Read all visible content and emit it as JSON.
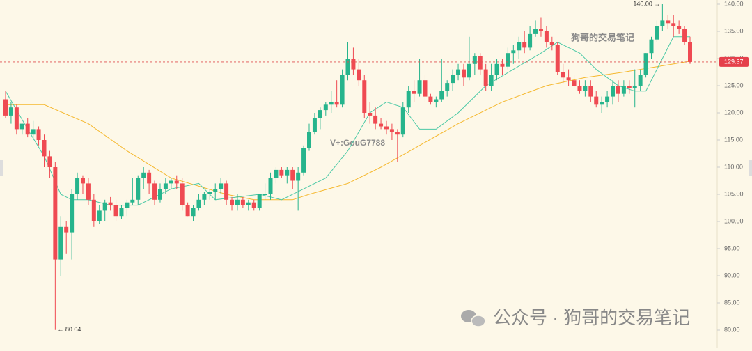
{
  "chart_data": {
    "type": "candlestick",
    "up_color": "#26b48c",
    "down_color": "#ef4a52",
    "ylim": [
      80,
      140
    ],
    "yticks": [
      {
        "value": 80,
        "label": "80.00"
      },
      {
        "value": 85,
        "label": "85.00"
      },
      {
        "value": 90,
        "label": "90.00"
      },
      {
        "value": 95,
        "label": "95.00"
      },
      {
        "value": 100,
        "label": "100.00"
      },
      {
        "value": 105,
        "label": "105.00"
      },
      {
        "value": 110,
        "label": "110.00"
      },
      {
        "value": 115,
        "label": "115.00"
      },
      {
        "value": 120,
        "label": "120.00"
      },
      {
        "value": 125,
        "label": "125.00"
      },
      {
        "value": 130,
        "label": "130.00"
      },
      {
        "value": 135,
        "label": "135.00"
      },
      {
        "value": 140,
        "label": "140.00"
      }
    ],
    "ohlc": [
      [
        122.5,
        124,
        119,
        119.5
      ],
      [
        119.5,
        122,
        118,
        121
      ],
      [
        121,
        121.5,
        116,
        117
      ],
      [
        117,
        118,
        116,
        118
      ],
      [
        118,
        119,
        115.5,
        116
      ],
      [
        116,
        118.5,
        115,
        117
      ],
      [
        117,
        117.5,
        114,
        115
      ],
      [
        115,
        116,
        110,
        112
      ],
      [
        112,
        113,
        108,
        110
      ],
      [
        110,
        111,
        80.04,
        93
      ],
      [
        93,
        101,
        90,
        99
      ],
      [
        99,
        100,
        94,
        98
      ],
      [
        98,
        106,
        93,
        105
      ],
      [
        105,
        109,
        104,
        108
      ],
      [
        108,
        108.5,
        105,
        107
      ],
      [
        107,
        108,
        103,
        104
      ],
      [
        104,
        105,
        99,
        100
      ],
      [
        100,
        103,
        99.5,
        102
      ],
      [
        102,
        104,
        100,
        103.5
      ],
      [
        103.5,
        104.5,
        102,
        103
      ],
      [
        103,
        104,
        100,
        101
      ],
      [
        101,
        103,
        100.5,
        102.5
      ],
      [
        102.5,
        104,
        101,
        103.5
      ],
      [
        103.5,
        108,
        103,
        104
      ],
      [
        104,
        108.5,
        103,
        108
      ],
      [
        108,
        110,
        106,
        109
      ],
      [
        109,
        109.5,
        105,
        107
      ],
      [
        107,
        107.5,
        103,
        104
      ],
      [
        104,
        107,
        103.5,
        106
      ],
      [
        106,
        108,
        105,
        107
      ],
      [
        107,
        108,
        106,
        107.5
      ],
      [
        107.5,
        108.5,
        106,
        107
      ],
      [
        107,
        108,
        102,
        103
      ],
      [
        103,
        103.5,
        101,
        101
      ],
      [
        101,
        103,
        100,
        102.5
      ],
      [
        102.5,
        105,
        102,
        104
      ],
      [
        104,
        105.5,
        103,
        105
      ],
      [
        105,
        106,
        104,
        105.5
      ],
      [
        105.5,
        107,
        104,
        106
      ],
      [
        106,
        108,
        105,
        107
      ],
      [
        107,
        107.5,
        103,
        104
      ],
      [
        104,
        104.5,
        102,
        103
      ],
      [
        103,
        105,
        102,
        104
      ],
      [
        104,
        104.5,
        102.5,
        103
      ],
      [
        103,
        104,
        102,
        103.5
      ],
      [
        103.5,
        104,
        102,
        102.5
      ],
      [
        102.5,
        105,
        102,
        105
      ],
      [
        105,
        107,
        104,
        105
      ],
      [
        105,
        109,
        104,
        108
      ],
      [
        108,
        110,
        107,
        109.5
      ],
      [
        109.5,
        110,
        108,
        108.5
      ],
      [
        108.5,
        110,
        107,
        109.5
      ],
      [
        109.5,
        110,
        106,
        107.5
      ],
      [
        107.5,
        110,
        102,
        109
      ],
      [
        109,
        114,
        108.5,
        113.5
      ],
      [
        113.5,
        118,
        113,
        116.5
      ],
      [
        116.5,
        120,
        116,
        119
      ],
      [
        119,
        121,
        117,
        120.5
      ],
      [
        120.5,
        122,
        119.5,
        121.5
      ],
      [
        121.5,
        124,
        120,
        122
      ],
      [
        122,
        126,
        121,
        121.5
      ],
      [
        121.5,
        128,
        121,
        127
      ],
      [
        127,
        133,
        126,
        130
      ],
      [
        130,
        132,
        127,
        128
      ],
      [
        128,
        130,
        125,
        126
      ],
      [
        126,
        127,
        119,
        120
      ],
      [
        120,
        122,
        118,
        119.5
      ],
      [
        119.5,
        121,
        117,
        118
      ],
      [
        118,
        119,
        117,
        117.5
      ],
      [
        117.5,
        118.5,
        116,
        117
      ],
      [
        117,
        118,
        115,
        116.5
      ],
      [
        116.5,
        117,
        111,
        116
      ],
      [
        116,
        122,
        115.5,
        121
      ],
      [
        121,
        125,
        120,
        124
      ],
      [
        124,
        126,
        122,
        123.5
      ],
      [
        123.5,
        130,
        123,
        126
      ],
      [
        126,
        127,
        122,
        123
      ],
      [
        123,
        123.5,
        121.5,
        122
      ],
      [
        122,
        123,
        121,
        122.5
      ],
      [
        122.5,
        130,
        122,
        124
      ],
      [
        124,
        126,
        123,
        125.5
      ],
      [
        125.5,
        128,
        124,
        127
      ],
      [
        127,
        129,
        126,
        128
      ],
      [
        128,
        129,
        125,
        126.5
      ],
      [
        126.5,
        134,
        126,
        129
      ],
      [
        129,
        131,
        127,
        130.5
      ],
      [
        130.5,
        131,
        127,
        128
      ],
      [
        128,
        129,
        124,
        125
      ],
      [
        125,
        129,
        124,
        127
      ],
      [
        127,
        130,
        126,
        129
      ],
      [
        129,
        130,
        127,
        128.5
      ],
      [
        128.5,
        132,
        128,
        131
      ],
      [
        131,
        132.5,
        129,
        131.5
      ],
      [
        131.5,
        134,
        130,
        133
      ],
      [
        133,
        135,
        131,
        132
      ],
      [
        132,
        136,
        131.5,
        134.5
      ],
      [
        134.5,
        137,
        134,
        135.5
      ],
      [
        135.5,
        137.5,
        134,
        135
      ],
      [
        135,
        136,
        132,
        133
      ],
      [
        133,
        134,
        131.5,
        132.5
      ],
      [
        132.5,
        133,
        127,
        127.5
      ],
      [
        127.5,
        129,
        125.5,
        126.5
      ],
      [
        126.5,
        128,
        125,
        126
      ],
      [
        126,
        127,
        124.5,
        125
      ],
      [
        125,
        126,
        123.5,
        124
      ],
      [
        124,
        126,
        123,
        125
      ],
      [
        125,
        126,
        122,
        123
      ],
      [
        123,
        124,
        121,
        121.5
      ],
      [
        121.5,
        123,
        120,
        122
      ],
      [
        122,
        124,
        121,
        123
      ],
      [
        123,
        126,
        121.5,
        125
      ],
      [
        125,
        126,
        122,
        123.5
      ],
      [
        123.5,
        126,
        123,
        125
      ],
      [
        125,
        126,
        123.5,
        124.5
      ],
      [
        124.5,
        128,
        121,
        125
      ],
      [
        125,
        128,
        124,
        127
      ],
      [
        127,
        131,
        126.5,
        131
      ],
      [
        131,
        134,
        130,
        133.5
      ],
      [
        133.5,
        137,
        133,
        136
      ],
      [
        136,
        140,
        135,
        137
      ],
      [
        137,
        138,
        135.5,
        136.5
      ],
      [
        136.5,
        138,
        134,
        136
      ],
      [
        136,
        137,
        134.5,
        135.5
      ],
      [
        135.5,
        136,
        132.5,
        133
      ],
      [
        133,
        134,
        129,
        129.37
      ]
    ],
    "ma_lines": [
      {
        "color": "#f5b82e",
        "x": [
          0,
          7,
          15,
          22,
          30,
          40,
          45,
          52,
          55,
          62,
          68,
          75,
          82,
          90,
          98,
          105,
          112,
          118,
          124
        ],
        "values": [
          121.5,
          121.5,
          118,
          113,
          108,
          105,
          104,
          104,
          105,
          107,
          110,
          114,
          118,
          122,
          125,
          126.5,
          127.5,
          128.5,
          129.5
        ]
      },
      {
        "color": "#4cc9a6",
        "x": [
          0,
          4,
          7,
          10,
          12,
          15,
          19,
          24,
          30,
          35,
          38,
          42,
          46,
          50,
          54,
          58,
          62,
          66,
          69,
          72,
          75,
          78,
          82,
          87,
          92,
          97,
          100,
          104,
          107,
          111,
          114,
          116,
          118,
          121,
          124
        ],
        "values": [
          124,
          117,
          112,
          105,
          104,
          104,
          103,
          103,
          106,
          107,
          104,
          104.5,
          105,
          104,
          106,
          108,
          113,
          120,
          122,
          121,
          117,
          117,
          120,
          125,
          128,
          131,
          133,
          131,
          128,
          125,
          124,
          124,
          128,
          134,
          134
        ]
      }
    ],
    "last_price": {
      "value": 129.37,
      "label": "129.37"
    },
    "high_label": "140.00 →",
    "low_label": "← 80.04",
    "annotations": [
      "V+:GouG7788",
      "狗哥的交易笔记"
    ],
    "watermark": "公众号 · 狗哥的交易笔记"
  }
}
